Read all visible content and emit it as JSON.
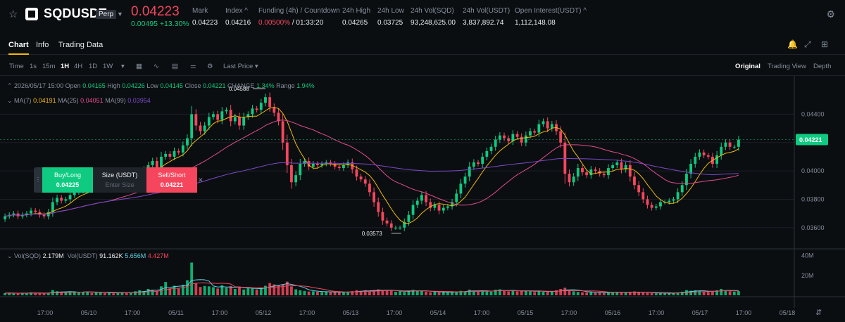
{
  "ticker": {
    "symbol": "SQDUSDT",
    "badge": "Perp",
    "price": "0.04223",
    "change": "0.00495 +13.30%",
    "stats": [
      {
        "label": "Mark",
        "value": "0.04223"
      },
      {
        "label": "Index ^",
        "value": "0.04216"
      },
      {
        "label": "Funding (4h) / Countdown",
        "value_red": "0.00500%",
        "value": " / 01:33:20"
      },
      {
        "label": "24h High",
        "value": "0.04265"
      },
      {
        "label": "24h Low",
        "value": "0.03725"
      },
      {
        "label": "24h Vol(SQD)",
        "value": "93,248,625.00"
      },
      {
        "label": "24h Vol(USDT)",
        "value": "3,837,892.74"
      },
      {
        "label": "Open Interest(USDT) ^",
        "value": "1,112,148.08"
      }
    ]
  },
  "tabs": [
    {
      "label": "Chart",
      "active": true
    },
    {
      "label": "Info",
      "active": false
    },
    {
      "label": "Trading Data",
      "active": false
    }
  ],
  "toolbar": {
    "intervals": [
      "Time",
      "1s",
      "15m",
      "1H",
      "4H",
      "1D",
      "1W"
    ],
    "active_interval": "1H",
    "price_type": "Last Price",
    "views": [
      "Original",
      "Trading View",
      "Depth"
    ],
    "active_view": "Original"
  },
  "ohlc": {
    "date": "2026/05/17 15:00",
    "open_label": "Open",
    "open": "0.04165",
    "high_label": "High",
    "high": "0.04226",
    "low_label": "Low",
    "low": "0.04145",
    "close_label": "Close",
    "close": "0.04221",
    "change_label": "CHANGE",
    "change": "1.34%",
    "range_label": "Range",
    "range": "1.94%"
  },
  "ma": {
    "ma7_label": "MA(7)",
    "ma7": "0.04191",
    "ma25_label": "MA(25)",
    "ma25": "0.04051",
    "ma99_label": "MA(99)",
    "ma99": "0.03954"
  },
  "volume_legend": {
    "sqd_label": "Vol(SQD)",
    "sqd": "2.179M",
    "usdt_label": "Vol(USDT)",
    "usdt": "91.162K",
    "ma1": "5.656M",
    "ma2": "4.427M"
  },
  "order_panel": {
    "buy_label": "Buy/Long",
    "buy_price": "0.04225",
    "size_label": "Size (USDT)",
    "size_placeholder": "Enter Size",
    "sell_label": "Sell/Short",
    "sell_price": "0.04221"
  },
  "chart_data": {
    "type": "candlestick",
    "price_axis": [
      "0.04400",
      "0.04200",
      "0.04000",
      "0.03800",
      "0.03600"
    ],
    "price_ylim": [
      0.0348,
      0.0462
    ],
    "volume_axis": [
      "40M",
      "20M"
    ],
    "volume_ylim": [
      0,
      44
    ],
    "x_ticks": [
      "17:00",
      "05/10",
      "17:00",
      "05/11",
      "17:00",
      "05/12",
      "17:00",
      "05/13",
      "17:00",
      "05/14",
      "17:00",
      "05/15",
      "17:00",
      "05/16",
      "17:00",
      "05/17",
      "17:00",
      "05/18"
    ],
    "current_price": "0.04221",
    "high_marker": "0.04588",
    "low_marker": "0.03573",
    "closes": [
      0.0368,
      0.0369,
      0.037,
      0.0368,
      0.0369,
      0.037,
      0.0372,
      0.0371,
      0.0369,
      0.0368,
      0.0371,
      0.0378,
      0.0381,
      0.0379,
      0.038,
      0.0383,
      0.0385,
      0.0386,
      0.0388,
      0.039,
      0.0389,
      0.0391,
      0.0392,
      0.039,
      0.0391,
      0.039,
      0.0392,
      0.0393,
      0.0391,
      0.0393,
      0.0396,
      0.0398,
      0.0401,
      0.0404,
      0.0407,
      0.0402,
      0.041,
      0.0412,
      0.041,
      0.0414,
      0.0413,
      0.0418,
      0.0423,
      0.044,
      0.0432,
      0.0428,
      0.0432,
      0.0438,
      0.044,
      0.0436,
      0.0442,
      0.0443,
      0.0435,
      0.0438,
      0.0432,
      0.0438,
      0.044,
      0.0444,
      0.0443,
      0.0448,
      0.0452,
      0.0445,
      0.0441,
      0.0435,
      0.042,
      0.0404,
      0.0392,
      0.0397,
      0.0405,
      0.0407,
      0.0403,
      0.0405,
      0.0404,
      0.0405,
      0.0406,
      0.0405,
      0.0403,
      0.0402,
      0.0404,
      0.0406,
      0.0401,
      0.0396,
      0.0394,
      0.0391,
      0.0385,
      0.0378,
      0.0371,
      0.0365,
      0.0363,
      0.036,
      0.036,
      0.036,
      0.0364,
      0.0369,
      0.0376,
      0.0379,
      0.0383,
      0.0378,
      0.0374,
      0.0376,
      0.0372,
      0.0374,
      0.0375,
      0.0378,
      0.0384,
      0.0391,
      0.0396,
      0.0403,
      0.0406,
      0.0405,
      0.041,
      0.0414,
      0.0417,
      0.0422,
      0.0425,
      0.0423,
      0.0421,
      0.0426,
      0.0424,
      0.042,
      0.0425,
      0.0428,
      0.0427,
      0.0433,
      0.0435,
      0.043,
      0.0433,
      0.0428,
      0.042,
      0.0398,
      0.0392,
      0.0396,
      0.0402,
      0.0399,
      0.0397,
      0.0401,
      0.04,
      0.0398,
      0.0397,
      0.0402,
      0.0404,
      0.0406,
      0.0401,
      0.0404,
      0.0396,
      0.039,
      0.0385,
      0.038,
      0.0376,
      0.0374,
      0.0375,
      0.0378,
      0.0378,
      0.0379,
      0.038,
      0.0385,
      0.039,
      0.0398,
      0.0405,
      0.041,
      0.0413,
      0.0411,
      0.041,
      0.0405,
      0.0411,
      0.0417,
      0.042,
      0.0417,
      0.0417,
      0.0422
    ],
    "volumes": [
      2.2,
      2.5,
      2.0,
      1.9,
      2.4,
      2.0,
      3.0,
      2.2,
      2.0,
      1.8,
      2.5,
      5.2,
      4.1,
      3.0,
      2.6,
      3.4,
      4.0,
      3.0,
      3.2,
      3.8,
      2.4,
      2.8,
      3.0,
      2.2,
      2.4,
      2.0,
      2.8,
      3.2,
      2.4,
      2.8,
      4.0,
      5.0,
      4.2,
      6.4,
      5.6,
      4.4,
      9.0,
      13.4,
      7.0,
      9.6,
      6.8,
      10.6,
      15.2,
      33.0,
      12.0,
      8.4,
      9.4,
      9.0,
      8.2,
      6.8,
      10.0,
      7.6,
      9.2,
      6.4,
      8.8,
      5.8,
      7.4,
      6.6,
      6.0,
      7.4,
      9.6,
      12.4,
      11.0,
      10.0,
      11.2,
      13.8,
      9.0,
      6.0,
      5.0,
      4.4,
      3.8,
      4.0,
      3.6,
      3.2,
      3.6,
      3.0,
      3.4,
      2.8,
      3.2,
      3.6,
      4.2,
      5.0,
      4.4,
      5.0,
      4.2,
      5.2,
      6.0,
      4.6,
      5.2,
      4.4,
      3.6,
      4.0,
      3.4,
      5.0,
      5.6,
      4.2,
      4.4,
      3.6,
      3.0,
      3.6,
      3.0,
      3.2,
      2.8,
      3.4,
      3.8,
      4.4,
      4.0,
      5.6,
      4.4,
      3.6,
      5.0,
      4.2,
      3.6,
      5.6,
      6.0,
      4.4,
      4.0,
      5.0,
      4.0,
      4.4,
      5.0,
      4.0,
      3.2,
      4.8,
      3.6,
      3.4,
      3.8,
      5.0,
      6.4,
      7.6,
      5.0,
      4.0,
      3.4,
      3.0,
      2.8,
      3.4,
      2.6,
      2.8,
      2.4,
      3.2,
      3.0,
      3.4,
      2.8,
      3.0,
      3.4,
      3.8,
      3.0,
      2.6,
      2.4,
      2.2,
      2.0,
      2.4,
      2.2,
      2.0,
      2.4,
      3.0,
      3.6,
      5.2,
      4.6,
      5.0,
      4.4,
      3.6,
      3.2,
      4.0,
      5.0,
      6.4,
      5.2,
      4.0,
      3.6,
      4.2
    ]
  }
}
